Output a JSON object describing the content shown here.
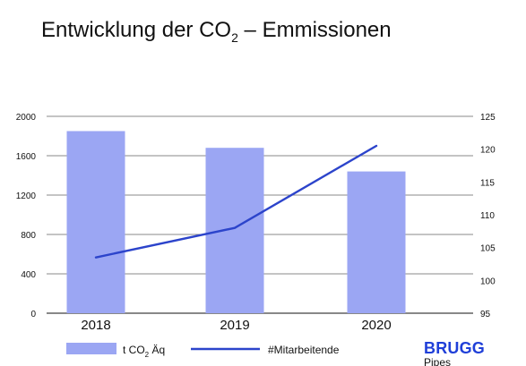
{
  "title": {
    "prefix": "Entwicklung der CO",
    "subscript": "2",
    "suffix": " – Emmissionen"
  },
  "chart_data": {
    "type": "bar",
    "categories": [
      "2018",
      "2019",
      "2020"
    ],
    "series": [
      {
        "name": "t CO₂ Äq",
        "type": "bar",
        "axis": "left",
        "values": [
          1850,
          1680,
          1440
        ],
        "color": "#9ba6f3"
      },
      {
        "name": "#Mitarbeitende",
        "type": "line",
        "axis": "right",
        "values": [
          103.5,
          108,
          120.5
        ],
        "color": "#2c44cb"
      }
    ],
    "y_left": {
      "ylim": [
        0,
        2000
      ],
      "ticks": [
        0,
        400,
        800,
        1200,
        1600,
        2000
      ]
    },
    "y_right": {
      "ylim": [
        95,
        125
      ],
      "ticks": [
        95,
        100,
        105,
        110,
        115,
        120,
        125
      ]
    },
    "grid": true,
    "legend": "bottom-left"
  },
  "legend": {
    "bar_label_prefix": "t CO",
    "bar_label_subscript": "2",
    "bar_label_suffix": " Äq",
    "line_label": "#Mitarbeitende"
  },
  "logo": {
    "main": "BRUGG",
    "sub": "Pipes"
  },
  "colors": {
    "bar": "#9ba6f3",
    "line": "#2c44cb",
    "grid": "#8a8a8a",
    "logo": "#1f3fd8"
  }
}
